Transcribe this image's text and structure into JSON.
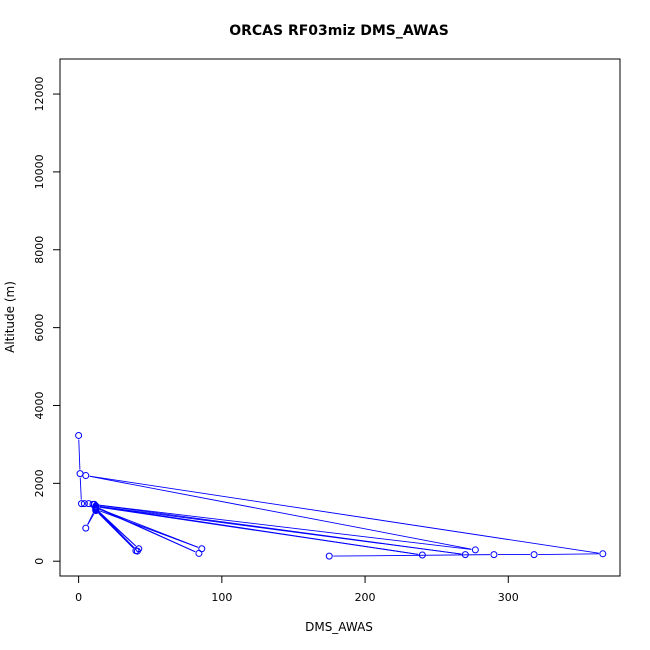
{
  "chart_data": {
    "type": "scatter",
    "title": "ORCAS RF03miz DMS_AWAS",
    "xlabel": "DMS_AWAS",
    "ylabel": "Altitude (m)",
    "xlim": [
      -13,
      378
    ],
    "ylim": [
      -380,
      12900
    ],
    "x_ticks": [
      0,
      100,
      200,
      300
    ],
    "y_ticks": [
      0,
      2000,
      4000,
      6000,
      8000,
      10000,
      12000
    ],
    "grid": false,
    "connected": true,
    "colors": {
      "series": "#0000ff",
      "axis": "#000000"
    },
    "series": [
      {
        "points": [
          {
            "x": 0,
            "y": 3230
          },
          {
            "x": 1,
            "y": 2250
          },
          {
            "x": 2,
            "y": 1480
          },
          {
            "x": 4,
            "y": 1480
          },
          {
            "x": 7,
            "y": 1480
          },
          {
            "x": 11,
            "y": 1460
          },
          {
            "x": 12,
            "y": 1370
          },
          {
            "x": 5,
            "y": 850
          },
          {
            "x": 12,
            "y": 1300
          },
          {
            "x": 40,
            "y": 270
          },
          {
            "x": 12,
            "y": 1320
          },
          {
            "x": 42,
            "y": 320
          },
          {
            "x": 12,
            "y": 1350
          },
          {
            "x": 41,
            "y": 260
          },
          {
            "x": 12,
            "y": 1330
          },
          {
            "x": 86,
            "y": 320
          },
          {
            "x": 12,
            "y": 1380
          },
          {
            "x": 84,
            "y": 200
          },
          {
            "x": 12,
            "y": 1400
          },
          {
            "x": 240,
            "y": 160
          },
          {
            "x": 12,
            "y": 1420
          },
          {
            "x": 270,
            "y": 170
          },
          {
            "x": 10,
            "y": 1460
          },
          {
            "x": 277,
            "y": 290
          },
          {
            "x": 5,
            "y": 2200
          },
          {
            "x": 366,
            "y": 190
          },
          {
            "x": 318,
            "y": 170
          },
          {
            "x": 290,
            "y": 170
          },
          {
            "x": 175,
            "y": 130
          }
        ]
      }
    ]
  }
}
